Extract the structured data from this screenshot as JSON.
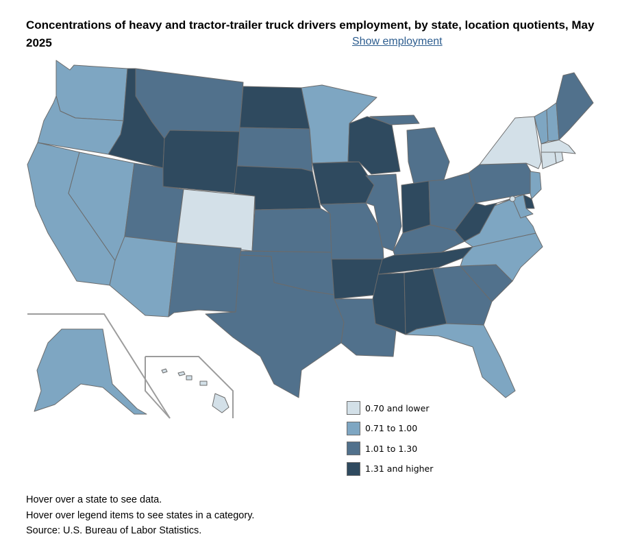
{
  "title": "Concentrations of heavy and tractor-trailer truck drivers employment, by state, location quotients, May 2025",
  "show_employment_link": "Show employment",
  "legend": [
    {
      "label": "0.70 and lower",
      "color": "#d3e0e8"
    },
    {
      "label": "0.71 to 1.00",
      "color": "#7ea6c2"
    },
    {
      "label": "1.01 to 1.30",
      "color": "#51718c"
    },
    {
      "label": "1.31 and higher",
      "color": "#2f4a5f"
    }
  ],
  "state_categories": {
    "WA": 1,
    "OR": 1,
    "CA": 1,
    "NV": 1,
    "AZ": 1,
    "ID": 3,
    "MT": 2,
    "WY": 3,
    "UT": 2,
    "CO": 0,
    "NM": 2,
    "ND": 3,
    "SD": 2,
    "NE": 3,
    "KS": 2,
    "OK": 2,
    "TX": 2,
    "MN": 1,
    "IA": 3,
    "MO": 2,
    "AR": 3,
    "LA": 2,
    "WI": 3,
    "IL": 2,
    "MI": 2,
    "IN": 3,
    "OH": 2,
    "KY": 2,
    "TN": 3,
    "MS": 3,
    "AL": 3,
    "GA": 2,
    "FL": 1,
    "SC": 2,
    "NC": 1,
    "VA": 1,
    "WV": 3,
    "PA": 2,
    "NY": 0,
    "VT": 1,
    "NH": 1,
    "ME": 2,
    "MA": 0,
    "CT": 0,
    "RI": 0,
    "NJ": 1,
    "DE": 3,
    "MD": 1,
    "DC": 0,
    "AK": 1,
    "HI": 0
  },
  "notes": [
    "Hover over a state to see data.",
    "Hover over legend items to see states in a category.",
    "Source: U.S. Bureau of Labor Statistics."
  ]
}
